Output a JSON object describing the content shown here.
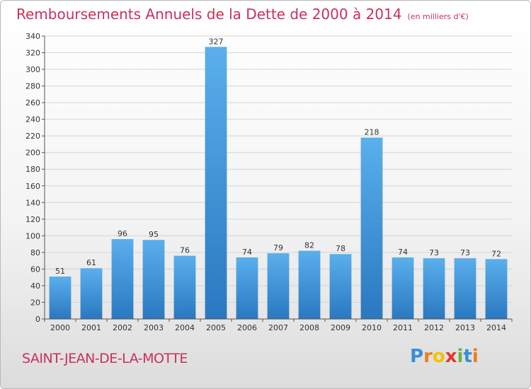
{
  "header": {
    "title": "Remboursements Annuels de la Dette de 2000 à 2014",
    "subtitle": "(en milliers d'€)"
  },
  "footer": {
    "commune": "SAINT-JEAN-DE-LA-MOTTE",
    "logo_letters": [
      "P",
      "r",
      "o",
      "x",
      "i",
      "t",
      "i"
    ]
  },
  "colors": {
    "bar_top": "#5aafec",
    "bar_bottom": "#2a78c0",
    "title": "#c8315a"
  },
  "chart_data": {
    "type": "bar",
    "categories": [
      "2000",
      "2001",
      "2002",
      "2003",
      "2004",
      "2005",
      "2006",
      "2007",
      "2008",
      "2009",
      "2010",
      "2011",
      "2012",
      "2013",
      "2014"
    ],
    "values": [
      51,
      61,
      96,
      95,
      76,
      327,
      74,
      79,
      82,
      78,
      218,
      74,
      73,
      73,
      72
    ],
    "title": "Remboursements Annuels de la Dette de 2000 à 2014",
    "ylim": [
      0,
      340
    ],
    "yticks": [
      0,
      20,
      40,
      60,
      80,
      100,
      120,
      140,
      160,
      180,
      200,
      220,
      240,
      260,
      280,
      300,
      320,
      340
    ],
    "grid": true
  }
}
